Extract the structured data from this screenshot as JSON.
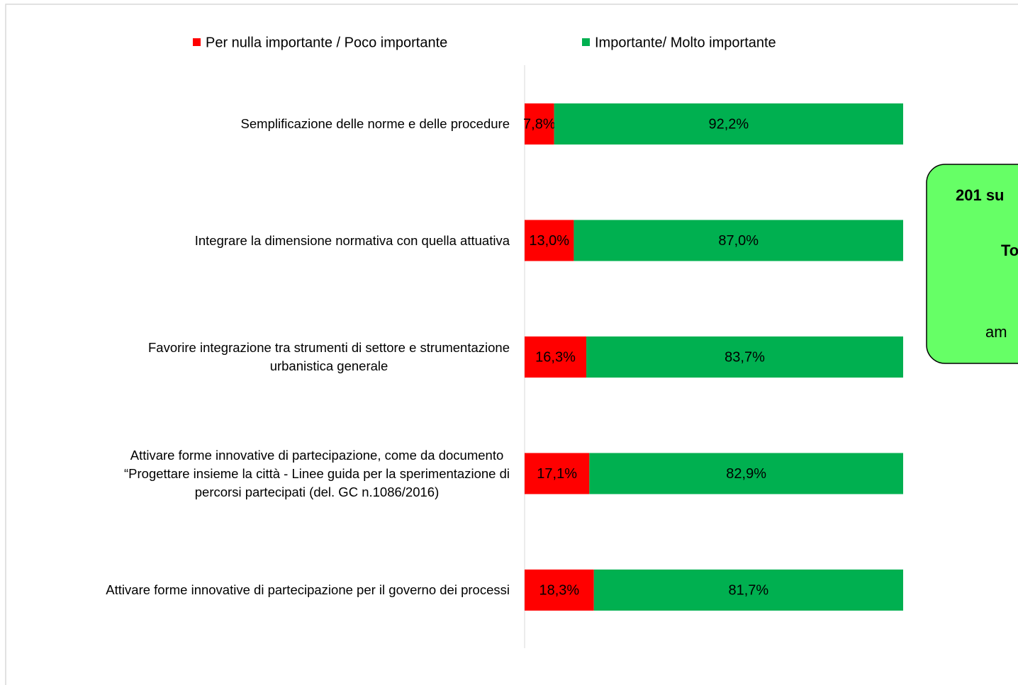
{
  "chart_data": {
    "type": "stacked-barh",
    "categories": [
      "Semplificazione delle norme e delle procedure",
      "Integrare la dimensione normativa con quella attuativa",
      "Favorire integrazione tra strumenti di settore e strumentazione\nurbanistica generale",
      "Attivare forme innovative  di partecipazione, come da documento\n“Progettare insieme la città - Linee guida per la sperimentazione di\npercorsi partecipati  (del. GC n.1086/2016)",
      "Attivare forme innovative di partecipazione per il governo dei processi"
    ],
    "series": [
      {
        "name": "Per nulla importante / Poco importante",
        "color": "#ff0000",
        "values": [
          7.8,
          13.0,
          16.3,
          17.1,
          18.3
        ],
        "value_labels": [
          "7,8%",
          "13,0%",
          "16,3%",
          "17,1%",
          "18,3%"
        ]
      },
      {
        "name": "Importante/ Molto importante",
        "color": "#00b050",
        "values": [
          92.2,
          87.0,
          83.7,
          82.9,
          81.7
        ],
        "value_labels": [
          "92,2%",
          "87,0%",
          "83,7%",
          "82,9%",
          "81,7%"
        ]
      }
    ],
    "xlim": [
      0,
      100
    ],
    "annotations": [
      "201 su",
      "To",
      "am"
    ]
  }
}
